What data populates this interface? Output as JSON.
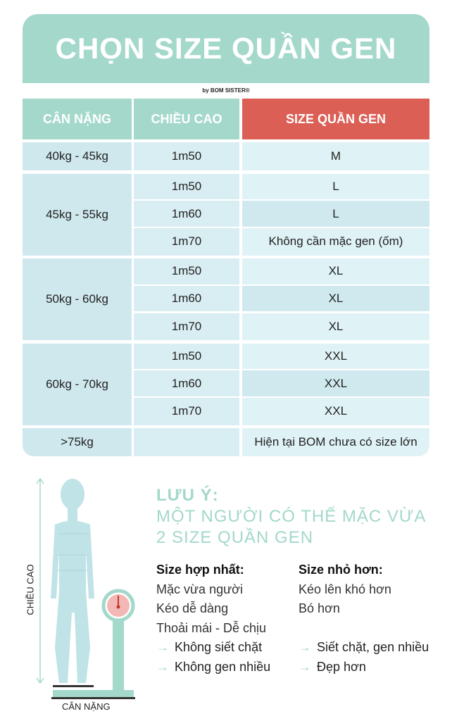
{
  "title": "CHỌN SIZE QUẦN GEN",
  "byline": "by BOM SISTER®",
  "colors": {
    "teal": "#a3d8cb",
    "red": "#dc5f56",
    "light_blue": "#dff2f6"
  },
  "table": {
    "headers": [
      "CÂN NẶNG",
      "CHIỀU CAO",
      "SIZE QUẦN GEN"
    ],
    "groups": [
      {
        "weight": "40kg -  45kg",
        "rows": [
          {
            "height": "1m50",
            "size": "M"
          }
        ]
      },
      {
        "weight": "45kg - 55kg",
        "rows": [
          {
            "height": "1m50",
            "size": "L"
          },
          {
            "height": "1m60",
            "size": "L"
          },
          {
            "height": "1m70",
            "size": "Không cần mặc gen (ốm)"
          }
        ]
      },
      {
        "weight": "50kg - 60kg",
        "rows": [
          {
            "height": "1m50",
            "size": "XL"
          },
          {
            "height": "1m60",
            "size": "XL"
          },
          {
            "height": "1m70",
            "size": "XL"
          }
        ]
      },
      {
        "weight": "60kg - 70kg",
        "rows": [
          {
            "height": "1m50",
            "size": "XXL"
          },
          {
            "height": "1m60",
            "size": "XXL"
          },
          {
            "height": "1m70",
            "size": "XXL"
          }
        ]
      },
      {
        "weight": ">75kg",
        "rows": [
          {
            "height": "",
            "size": "Hiện tại BOM chưa có size lớn"
          }
        ]
      }
    ]
  },
  "figure": {
    "height_label": "CHIỀU CAO",
    "weight_label": "CÂN NẶNG"
  },
  "note": {
    "heading": "LƯU Ý:",
    "line1": "MỘT NGƯỜI CÓ THỂ MẶC VỪA",
    "line2": "2 SIZE QUẦN GEN",
    "best": {
      "title": "Size hợp nhất:",
      "items": [
        "Mặc vừa người",
        "Kéo dễ dàng",
        "Thoải mái - Dễ chịu"
      ],
      "results": [
        "Không siết chặt",
        "Không gen nhiều"
      ]
    },
    "smaller": {
      "title": "Size nhỏ hơn:",
      "items": [
        "Kéo lên khó hơn",
        "Bó hơn"
      ],
      "results": [
        "Siết chặt, gen nhiều",
        "Đẹp hơn"
      ]
    }
  }
}
